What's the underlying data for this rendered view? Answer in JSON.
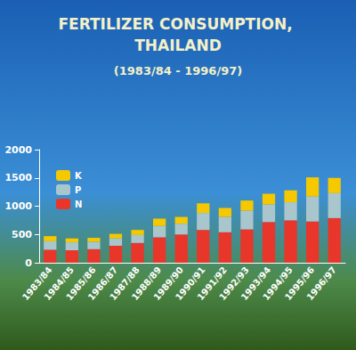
{
  "chart_data": {
    "type": "bar",
    "title": "FERTILIZER CONSUMPTION, THAILAND",
    "subtitle": "(1983/84 - 1996/97)",
    "categories": [
      "1983/84",
      "1984/85",
      "1985/86",
      "1986/87",
      "1987/88",
      "1988/89",
      "1989/90",
      "1990/91",
      "1991/92",
      "1992/93",
      "1993/94",
      "1994/95",
      "1995/96",
      "1996/97"
    ],
    "series": [
      {
        "name": "N",
        "color": "#e8362b",
        "values": [
          230,
          220,
          240,
          300,
          350,
          450,
          500,
          580,
          540,
          590,
          720,
          750,
          730,
          790
        ]
      },
      {
        "name": "P",
        "color": "#a9c6cc",
        "values": [
          150,
          140,
          130,
          130,
          140,
          200,
          190,
          300,
          270,
          330,
          310,
          320,
          440,
          440
        ]
      },
      {
        "name": "K",
        "color": "#f5c800",
        "values": [
          90,
          70,
          70,
          80,
          90,
          130,
          120,
          170,
          160,
          180,
          190,
          210,
          340,
          270
        ]
      }
    ],
    "stacked": true,
    "ylim": [
      0,
      2000
    ],
    "yticks": [
      0,
      500,
      1000,
      1500,
      2000
    ],
    "grid": false,
    "legend": "upper left"
  }
}
